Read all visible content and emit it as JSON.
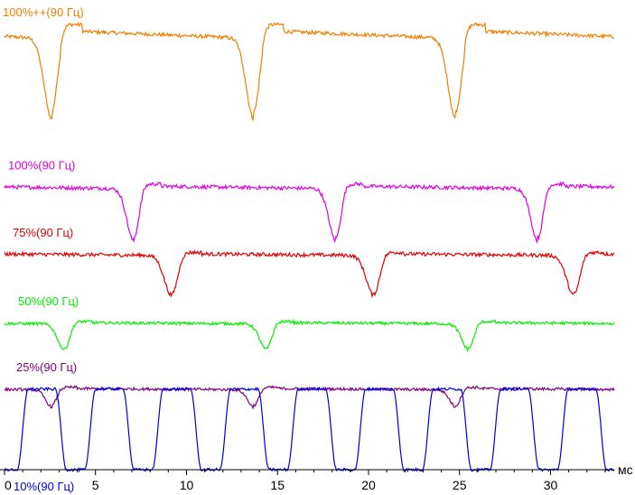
{
  "chart_data": {
    "type": "line",
    "title": "",
    "xlabel": "",
    "ylabel": "",
    "x_unit": "мс",
    "xlim": [
      0,
      33.5
    ],
    "x_ticks": [
      0,
      5,
      10,
      15,
      20,
      25,
      30
    ],
    "x_tick_labels": [
      "0",
      "5",
      "10",
      "15",
      "20",
      "25",
      "30"
    ],
    "grid": false,
    "legend": "inline labels above each trace",
    "refresh_period_ms": 11.11,
    "series": [
      {
        "name": "100%++(90 Гц)",
        "color": "#ef7f00",
        "kind": "dip",
        "baseline_level": 0.945,
        "dip_level": 0.77,
        "dip_centers_ms": [
          2.6,
          13.7,
          24.8
        ],
        "dip_width_ms": 0.55,
        "ramp_drift": 0.018,
        "noise": 0.004
      },
      {
        "name": "100%(90 Гц)",
        "color": "#e000e0",
        "kind": "dip",
        "baseline_level": 0.613,
        "dip_level": 0.5,
        "dip_centers_ms": [
          7.1,
          18.2,
          29.3
        ],
        "dip_width_ms": 0.5,
        "ramp_drift": 0.006,
        "noise": 0.004
      },
      {
        "name": "75%(90 Гц)",
        "color": "#e00000",
        "kind": "dip",
        "baseline_level": 0.467,
        "dip_level": 0.38,
        "dip_centers_ms": [
          9.2,
          20.3,
          31.3
        ],
        "dip_width_ms": 0.55,
        "ramp_drift": 0.004,
        "noise": 0.004
      },
      {
        "name": "50%(90 Гц)",
        "color": "#00ee00",
        "kind": "dip",
        "baseline_level": 0.318,
        "dip_level": 0.262,
        "dip_centers_ms": [
          3.3,
          14.4,
          25.5
        ],
        "dip_width_ms": 0.5,
        "ramp_drift": 0.003,
        "noise": 0.003
      },
      {
        "name": "25%(90 Гц)",
        "color": "#800080",
        "kind": "dip",
        "baseline_level": 0.175,
        "dip_level": 0.138,
        "dip_centers_ms": [
          2.6,
          13.7,
          24.8
        ],
        "dip_width_ms": 0.45,
        "ramp_drift": 0.003,
        "noise": 0.003
      },
      {
        "name": "10%(90 Гц)",
        "color": "#0000e0",
        "kind": "pwm",
        "low_level": 0.0,
        "high_level": 0.175,
        "pulse_period_ms": 3.71,
        "first_pulse_start_ms": 0.7,
        "pulse_on_ms": 2.1,
        "rise_ms": 0.6,
        "noise": 0.003
      }
    ]
  }
}
